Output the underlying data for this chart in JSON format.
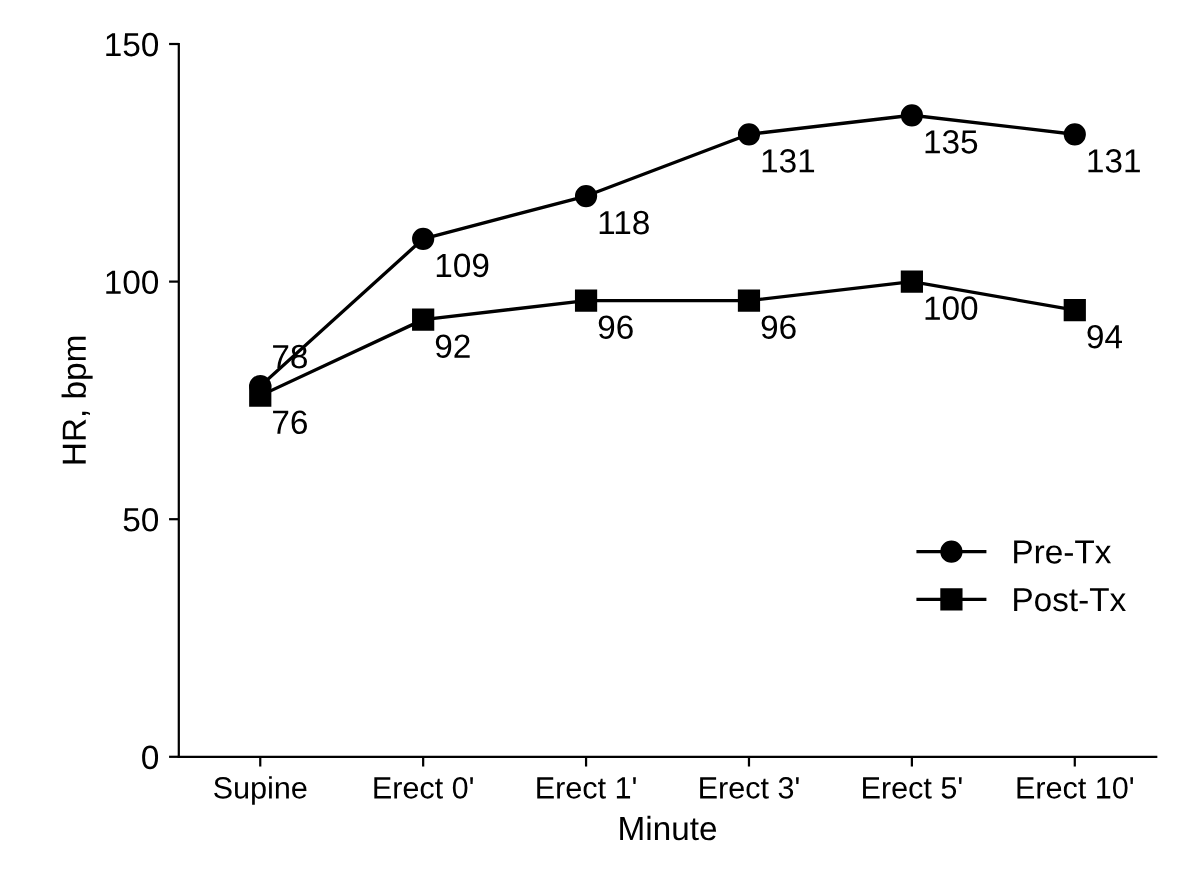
{
  "chart_data": {
    "type": "line",
    "xlabel": "Minute",
    "ylabel": "HR, bpm",
    "categories": [
      "Supine",
      "Erect 0'",
      "Erect 1'",
      "Erect 3'",
      "Erect 5'",
      "Erect 10'"
    ],
    "series": [
      {
        "name": "Pre-Tx",
        "color": "#000000",
        "marker": "circle",
        "values": [
          78,
          109,
          118,
          131,
          135,
          131
        ]
      },
      {
        "name": "Post-Tx",
        "color": "#000000",
        "marker": "square",
        "values": [
          76,
          92,
          96,
          96,
          100,
          94
        ]
      }
    ],
    "ylim": [
      0,
      150
    ],
    "yticks": [
      0,
      50,
      100,
      150
    ],
    "data_labels": true,
    "legend": "right",
    "grid": false,
    "line_style": "solid"
  }
}
